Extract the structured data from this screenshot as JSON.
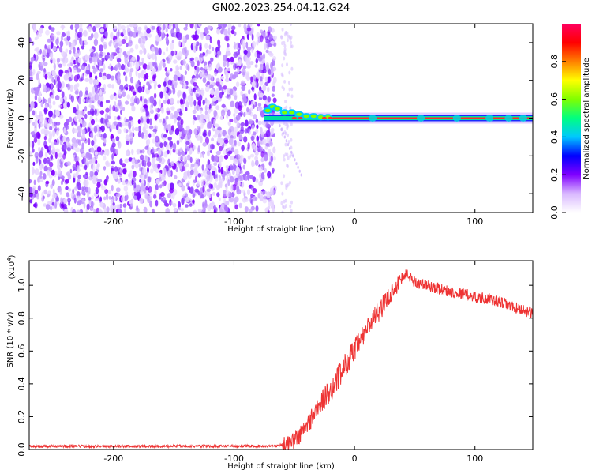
{
  "title": "GN02.2023.254.04.12.G24",
  "chart_data": [
    {
      "type": "heatmap",
      "name": "spectrogram",
      "xlabel": "Height of straight line (km)",
      "ylabel": "Frequency (Hz)",
      "xlim": [
        -270,
        148
      ],
      "ylim": [
        -50,
        50
      ],
      "xticks": [
        -200,
        -100,
        0,
        100
      ],
      "yticks": [
        -40,
        -20,
        0,
        20,
        40
      ],
      "noise_region_x": [
        -270,
        -62
      ],
      "signal_line": {
        "x_start": -75,
        "x_end": 148,
        "frequency": 0
      },
      "colorbar": {
        "label": "Normalized spectral amplitude",
        "range": [
          0,
          1
        ],
        "ticks": [
          "0.0",
          "0.2",
          "0.4",
          "0.6",
          "0.8"
        ],
        "colors": [
          "#ffffff",
          "#d9b8ff",
          "#8000ff",
          "#0000ff",
          "#00c8ff",
          "#00ff80",
          "#80ff00",
          "#ffff00",
          "#ff8000",
          "#ff0000",
          "#ff0060"
        ]
      }
    },
    {
      "type": "line",
      "name": "snr",
      "xlabel": "Height of straight line (km)",
      "ylabel": "SNR (10 * v/v)",
      "yscale_note": "(x10",
      "yscale_exp": "4",
      "yscale_close": ")",
      "xlim": [
        -270,
        148
      ],
      "ylim": [
        0,
        1.15
      ],
      "xticks": [
        -200,
        -100,
        0,
        100
      ],
      "yticks": [
        "0.0",
        "0.2",
        "0.4",
        "0.6",
        "0.8",
        "1.0"
      ],
      "color": "#ee3333",
      "series": [
        {
          "x": [
            -270,
            -200,
            -100,
            -70,
            -55,
            -50,
            -45,
            -40,
            -35,
            -30,
            -25,
            -20,
            -15,
            -10,
            -5,
            0,
            5,
            10,
            15,
            20,
            25,
            30,
            35,
            40,
            42,
            45,
            50,
            60,
            70,
            80,
            90,
            100,
            110,
            120,
            130,
            140,
            148
          ],
          "values": [
            0.02,
            0.02,
            0.02,
            0.02,
            0.03,
            0.06,
            0.09,
            0.14,
            0.2,
            0.26,
            0.31,
            0.36,
            0.42,
            0.48,
            0.55,
            0.6,
            0.66,
            0.73,
            0.79,
            0.84,
            0.89,
            0.95,
            1.0,
            1.05,
            1.07,
            1.06,
            1.02,
            1.0,
            0.98,
            0.96,
            0.95,
            0.93,
            0.92,
            0.9,
            0.87,
            0.85,
            0.83
          ]
        }
      ]
    }
  ]
}
